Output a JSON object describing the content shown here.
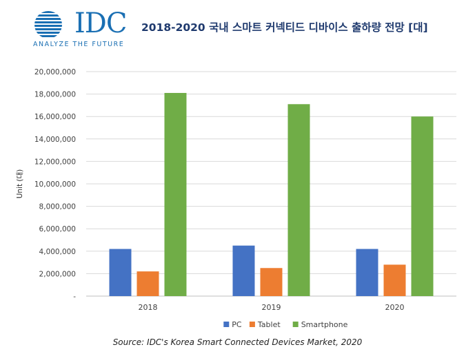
{
  "header": {
    "logo_text": "IDC",
    "logo_tagline": "ANALYZE THE FUTURE",
    "title": "2018-2020 국내 스마트 커넥티드 디바이스 출하량 전망 [대]"
  },
  "chart_data": {
    "type": "bar",
    "title": "2018-2020 국내 스마트 커넥티드 디바이스 출하량 전망 [대]",
    "xlabel": "",
    "ylabel": "Unit (대)",
    "ylim": [
      0,
      20000000
    ],
    "y_ticks": [
      "-",
      "2,000,000",
      "4,000,000",
      "6,000,000",
      "8,000,000",
      "10,000,000",
      "12,000,000",
      "14,000,000",
      "16,000,000",
      "18,000,000",
      "20,000,000"
    ],
    "grid": true,
    "legend_position": "bottom",
    "categories": [
      "2018",
      "2019",
      "2020"
    ],
    "series": [
      {
        "name": "PC",
        "color": "#4472c4",
        "values": [
          4200000,
          4500000,
          4200000
        ]
      },
      {
        "name": "Tablet",
        "color": "#ed7d31",
        "values": [
          2200000,
          2500000,
          2800000
        ]
      },
      {
        "name": "Smartphone",
        "color": "#70ad47",
        "values": [
          18100000,
          17100000,
          16000000
        ]
      }
    ]
  },
  "footer": {
    "source": "Source: IDC's Korea Smart Connected Devices Market, 2020"
  }
}
